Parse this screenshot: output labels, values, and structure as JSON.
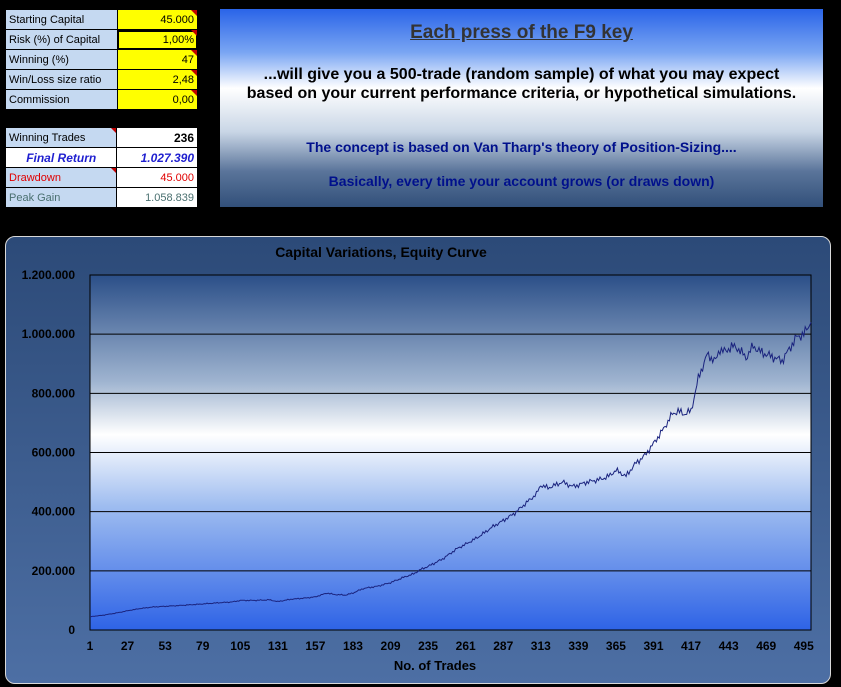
{
  "inputs": {
    "rows": [
      {
        "label": "Starting Capital",
        "value": "45.000"
      },
      {
        "label": "Risk (%) of Capital",
        "value": "1,00%"
      },
      {
        "label": "Winning (%)",
        "value": "47"
      },
      {
        "label": "Win/Loss size ratio",
        "value": "2,48"
      },
      {
        "label": "Commission",
        "value": "0,00"
      }
    ]
  },
  "results": {
    "winning_trades": {
      "label": "Winning Trades",
      "value": "236"
    },
    "final_return": {
      "label": "Final Return",
      "value": "1.027.390"
    },
    "drawdown": {
      "label": "Drawdown",
      "value": "45.000"
    },
    "peak_gain": {
      "label": "Peak Gain",
      "value": "1.058.839"
    }
  },
  "info": {
    "heading": "Each press of the F9 key",
    "line1": "...will give you a 500-trade (random sample) of what you may expect based on your current performance criteria, or hypothetical simulations.",
    "line2": "The concept is based on Van Tharp's theory of Position-Sizing....",
    "line3": "Basically, every time  your account grows (or draws down)"
  },
  "colors": {
    "input_label_bg": "#c5d9f1",
    "input_value_bg": "#ffff00",
    "final_return": "#1f1fd0",
    "drawdown": "#e00000",
    "peak_gain": "#4a7070",
    "series_line": "#1a237e"
  },
  "chart_data": {
    "type": "line",
    "title": "Capital Variations, Equity Curve",
    "xlabel": "No. of Trades",
    "ylabel": "",
    "ylim": [
      0,
      1200000
    ],
    "yticks": [
      0,
      200000,
      400000,
      600000,
      800000,
      1000000,
      1200000
    ],
    "ytick_labels": [
      "0",
      "200.000",
      "400.000",
      "600.000",
      "800.000",
      "1.000.000",
      "1.200.000"
    ],
    "xticks": [
      1,
      27,
      53,
      79,
      105,
      131,
      157,
      183,
      209,
      235,
      261,
      287,
      313,
      339,
      365,
      391,
      417,
      443,
      469,
      495
    ],
    "xlim": [
      1,
      500
    ],
    "grid": true,
    "series": [
      {
        "x": [
          1,
          10,
          20,
          27,
          35,
          45,
          53,
          60,
          70,
          79,
          90,
          100,
          105,
          115,
          125,
          131,
          140,
          150,
          157,
          165,
          170,
          178,
          183,
          190,
          200,
          209,
          218,
          225,
          230,
          235,
          245,
          255,
          261,
          270,
          280,
          287,
          295,
          303,
          310,
          313,
          318,
          323,
          328,
          335,
          339,
          345,
          350,
          355,
          360,
          365,
          372,
          378,
          385,
          391,
          398,
          404,
          408,
          412,
          417,
          422,
          428,
          434,
          437,
          441,
          445,
          450,
          455,
          460,
          465,
          470,
          475,
          480,
          485,
          490,
          495,
          500
        ],
        "y": [
          45000,
          50000,
          58000,
          65000,
          72000,
          78000,
          80000,
          82000,
          85000,
          88000,
          92000,
          95000,
          100000,
          100000,
          102000,
          96000,
          104000,
          108000,
          112000,
          125000,
          120000,
          118000,
          125000,
          140000,
          148000,
          160000,
          178000,
          190000,
          205000,
          215000,
          240000,
          275000,
          290000,
          315000,
          350000,
          370000,
          395000,
          430000,
          460000,
          490000,
          480000,
          490000,
          500000,
          485000,
          490000,
          500000,
          505000,
          510000,
          520000,
          540000,
          520000,
          560000,
          590000,
          630000,
          680000,
          730000,
          740000,
          730000,
          740000,
          850000,
          930000,
          910000,
          950000,
          940000,
          960000,
          950000,
          920000,
          960000,
          940000,
          930000,
          920000,
          910000,
          950000,
          990000,
          1000000,
          1040000
        ]
      }
    ]
  }
}
